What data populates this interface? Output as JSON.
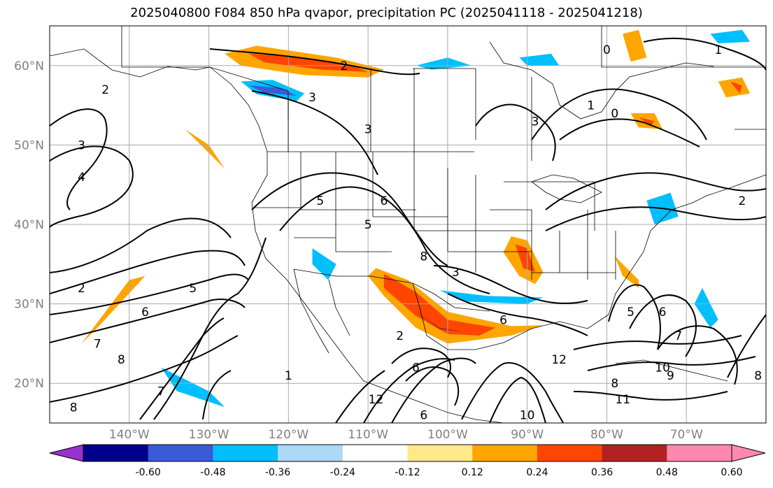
{
  "title": "2025040800 F084 850 hPa qvapor, precipitation PC (2025041118 - 2025041218)",
  "map": {
    "lon_range": [
      -150,
      -60
    ],
    "lat_range": [
      15,
      65
    ],
    "lon_ticks": [
      {
        "value": -140,
        "label": "140°W"
      },
      {
        "value": -130,
        "label": "130°W"
      },
      {
        "value": -120,
        "label": "120°W"
      },
      {
        "value": -110,
        "label": "110°W"
      },
      {
        "value": -100,
        "label": "100°W"
      },
      {
        "value": -90,
        "label": "90°W"
      },
      {
        "value": -80,
        "label": "80°W"
      },
      {
        "value": -70,
        "label": "70°W"
      }
    ],
    "lat_ticks": [
      {
        "value": 20,
        "label": "20°N"
      },
      {
        "value": 30,
        "label": "30°N"
      },
      {
        "value": 40,
        "label": "40°N"
      },
      {
        "value": 50,
        "label": "50°N"
      },
      {
        "value": 60,
        "label": "60°N"
      }
    ],
    "gridlines": true,
    "contour_labels": [
      {
        "lon": -143,
        "lat": 57,
        "text": "2"
      },
      {
        "lon": -146,
        "lat": 50,
        "text": "3"
      },
      {
        "lon": -146,
        "lat": 46,
        "text": "4"
      },
      {
        "lon": -146,
        "lat": 32,
        "text": "2"
      },
      {
        "lon": -138,
        "lat": 29,
        "text": "6"
      },
      {
        "lon": -144,
        "lat": 25,
        "text": "7"
      },
      {
        "lon": -141,
        "lat": 23,
        "text": "8"
      },
      {
        "lon": -147,
        "lat": 17,
        "text": "8"
      },
      {
        "lon": -136,
        "lat": 19,
        "text": "7"
      },
      {
        "lon": -132,
        "lat": 32,
        "text": "5"
      },
      {
        "lon": -116,
        "lat": 43,
        "text": "5"
      },
      {
        "lon": -108,
        "lat": 43,
        "text": "6"
      },
      {
        "lon": -110,
        "lat": 40,
        "text": "5"
      },
      {
        "lon": -103,
        "lat": 36,
        "text": "8"
      },
      {
        "lon": -99,
        "lat": 34,
        "text": "3"
      },
      {
        "lon": -93,
        "lat": 28,
        "text": "6"
      },
      {
        "lon": -110,
        "lat": 52,
        "text": "3"
      },
      {
        "lon": -113,
        "lat": 60,
        "text": "2"
      },
      {
        "lon": -117,
        "lat": 56,
        "text": "3"
      },
      {
        "lon": -89,
        "lat": 53,
        "text": "3"
      },
      {
        "lon": -82,
        "lat": 55,
        "text": "1"
      },
      {
        "lon": -79,
        "lat": 54,
        "text": "0"
      },
      {
        "lon": -80,
        "lat": 62,
        "text": "0"
      },
      {
        "lon": -66,
        "lat": 62,
        "text": "1"
      },
      {
        "lon": -63,
        "lat": 43,
        "text": "2"
      },
      {
        "lon": -77,
        "lat": 29,
        "text": "5"
      },
      {
        "lon": -73,
        "lat": 29,
        "text": "6"
      },
      {
        "lon": -71,
        "lat": 26,
        "text": "7"
      },
      {
        "lon": -61,
        "lat": 21,
        "text": "8"
      },
      {
        "lon": -72,
        "lat": 21,
        "text": "9"
      },
      {
        "lon": -73,
        "lat": 22,
        "text": "10"
      },
      {
        "lon": -78,
        "lat": 18,
        "text": "11"
      },
      {
        "lon": -86,
        "lat": 23,
        "text": "12"
      },
      {
        "lon": -120,
        "lat": 21,
        "text": "1"
      },
      {
        "lon": -109,
        "lat": 18,
        "text": "12"
      },
      {
        "lon": -103,
        "lat": 16,
        "text": "6"
      },
      {
        "lon": -104,
        "lat": 22,
        "text": "6"
      },
      {
        "lon": -90,
        "lat": 16,
        "text": "10"
      },
      {
        "lon": -79,
        "lat": 20,
        "text": "8"
      },
      {
        "lon": -106,
        "lat": 26,
        "text": "2"
      }
    ]
  },
  "colorbar": {
    "labels": [
      "-0.60",
      "-0.48",
      "-0.36",
      "-0.24",
      "-0.12",
      "0.12",
      "0.24",
      "0.36",
      "0.48",
      "0.60"
    ],
    "colors": [
      "#9932cc",
      "#00008b",
      "#3b5bd6",
      "#00bfff",
      "#add8f6",
      "#ffffff",
      "#ffe98a",
      "#ffa500",
      "#ff4500",
      "#b22222",
      "#ff88b0",
      "#ff88b0"
    ]
  },
  "shading": {
    "positive": "#ff4500",
    "positive_light": "#ffa500",
    "positive_faint": "#ffe98a",
    "positive_dark": "#b22222",
    "negative": "#00bfff",
    "negative_dark": "#3b5bd6",
    "negative_light": "#add8f6"
  }
}
